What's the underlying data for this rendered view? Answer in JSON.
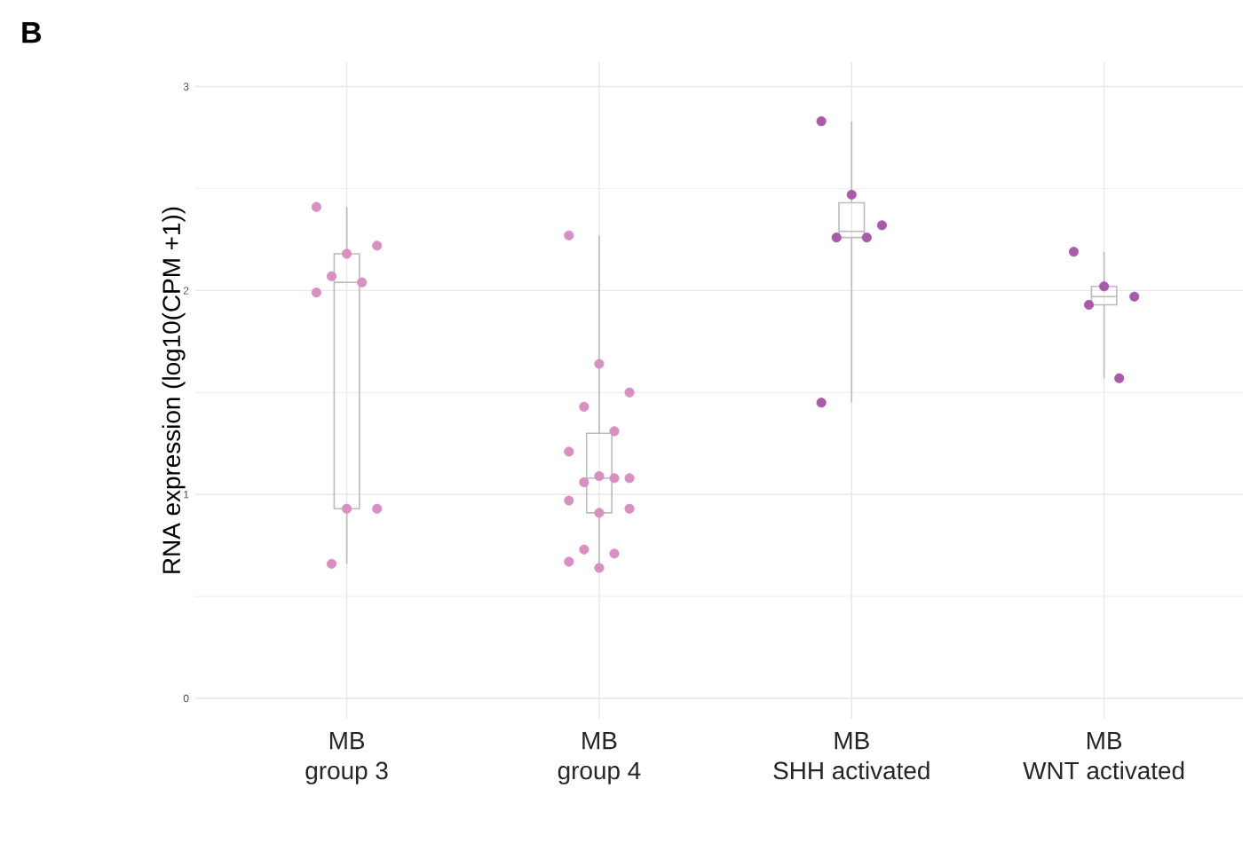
{
  "chart_data": {
    "type": "box",
    "ylabel": "RNA expression (log10(CPM +1))",
    "annotations": [
      "B"
    ],
    "categories": [
      "MB group 3",
      "MB group 4",
      "MB SHH activated",
      "MB WNT activated"
    ],
    "boxes": [
      {
        "low": 0.66,
        "q1": 0.93,
        "median": 2.04,
        "q3": 2.18,
        "high": 2.41
      },
      {
        "low": 0.64,
        "q1": 0.91,
        "median": 1.08,
        "q3": 1.3,
        "high": 2.27
      },
      {
        "low": 1.45,
        "q1": 2.26,
        "median": 2.29,
        "q3": 2.43,
        "high": 2.83
      },
      {
        "low": 1.57,
        "q1": 1.93,
        "median": 1.97,
        "q3": 2.02,
        "high": 2.19
      }
    ],
    "color": "#bbbbbb",
    "series": [
      {
        "type": "scatter",
        "color": "#d98fc1",
        "x": [
          "MB group 3",
          "MB group 3",
          "MB group 3",
          "MB group 3",
          "MB group 3",
          "MB group 3",
          "MB group 3",
          "MB group 3",
          "MB group 3"
        ],
        "values": [
          2.41,
          2.18,
          2.22,
          2.07,
          2.04,
          1.99,
          0.93,
          0.93,
          0.66
        ]
      },
      {
        "type": "scatter",
        "color": "#d98fc1",
        "x": [
          "MB group 4",
          "MB group 4",
          "MB group 4",
          "MB group 4",
          "MB group 4",
          "MB group 4",
          "MB group 4",
          "MB group 4",
          "MB group 4",
          "MB group 4",
          "MB group 4",
          "MB group 4",
          "MB group 4",
          "MB group 4",
          "MB group 4",
          "MB group 4",
          "MB group 4"
        ],
        "values": [
          2.27,
          1.64,
          1.5,
          1.43,
          1.31,
          1.21,
          1.09,
          1.08,
          1.06,
          1.08,
          0.97,
          0.91,
          0.93,
          0.73,
          0.71,
          0.67,
          0.64
        ]
      },
      {
        "type": "scatter",
        "color": "#a95aa8",
        "x": [
          "MB SHH activated",
          "MB SHH activated",
          "MB SHH activated",
          "MB SHH activated",
          "MB SHH activated",
          "MB SHH activated"
        ],
        "values": [
          2.83,
          2.47,
          2.32,
          2.26,
          2.26,
          1.45
        ]
      },
      {
        "type": "scatter",
        "color": "#a95aa8",
        "x": [
          "MB WNT activated",
          "MB WNT activated",
          "MB WNT activated",
          "MB WNT activated",
          "MB WNT activated"
        ],
        "values": [
          2.19,
          2.02,
          1.97,
          1.93,
          1.57
        ]
      }
    ],
    "ylim": [
      -0.1,
      3.12
    ],
    "yticks": [
      0,
      1,
      2,
      3
    ],
    "grid": true
  }
}
